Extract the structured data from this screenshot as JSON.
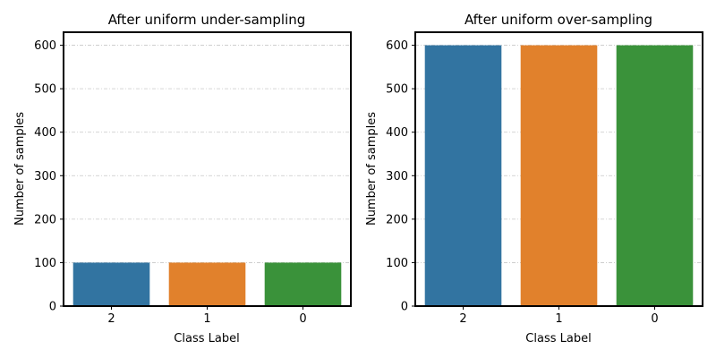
{
  "chart_data": [
    {
      "type": "bar",
      "title": "After uniform under-sampling",
      "xlabel": "Class Label",
      "ylabel": "Number of samples",
      "categories": [
        "2",
        "1",
        "0"
      ],
      "values": [
        100,
        100,
        100
      ],
      "ylim": [
        0,
        630
      ],
      "yticks": [
        0,
        100,
        200,
        300,
        400,
        500,
        600
      ],
      "colors": [
        "#3274a1",
        "#e1812c",
        "#3a923a"
      ],
      "grid": true
    },
    {
      "type": "bar",
      "title": "After uniform over-sampling",
      "xlabel": "Class Label",
      "ylabel": "Number of samples",
      "categories": [
        "2",
        "1",
        "0"
      ],
      "values": [
        600,
        600,
        600
      ],
      "ylim": [
        0,
        630
      ],
      "yticks": [
        0,
        100,
        200,
        300,
        400,
        500,
        600
      ],
      "colors": [
        "#3274a1",
        "#e1812c",
        "#3a923a"
      ],
      "grid": true
    }
  ]
}
